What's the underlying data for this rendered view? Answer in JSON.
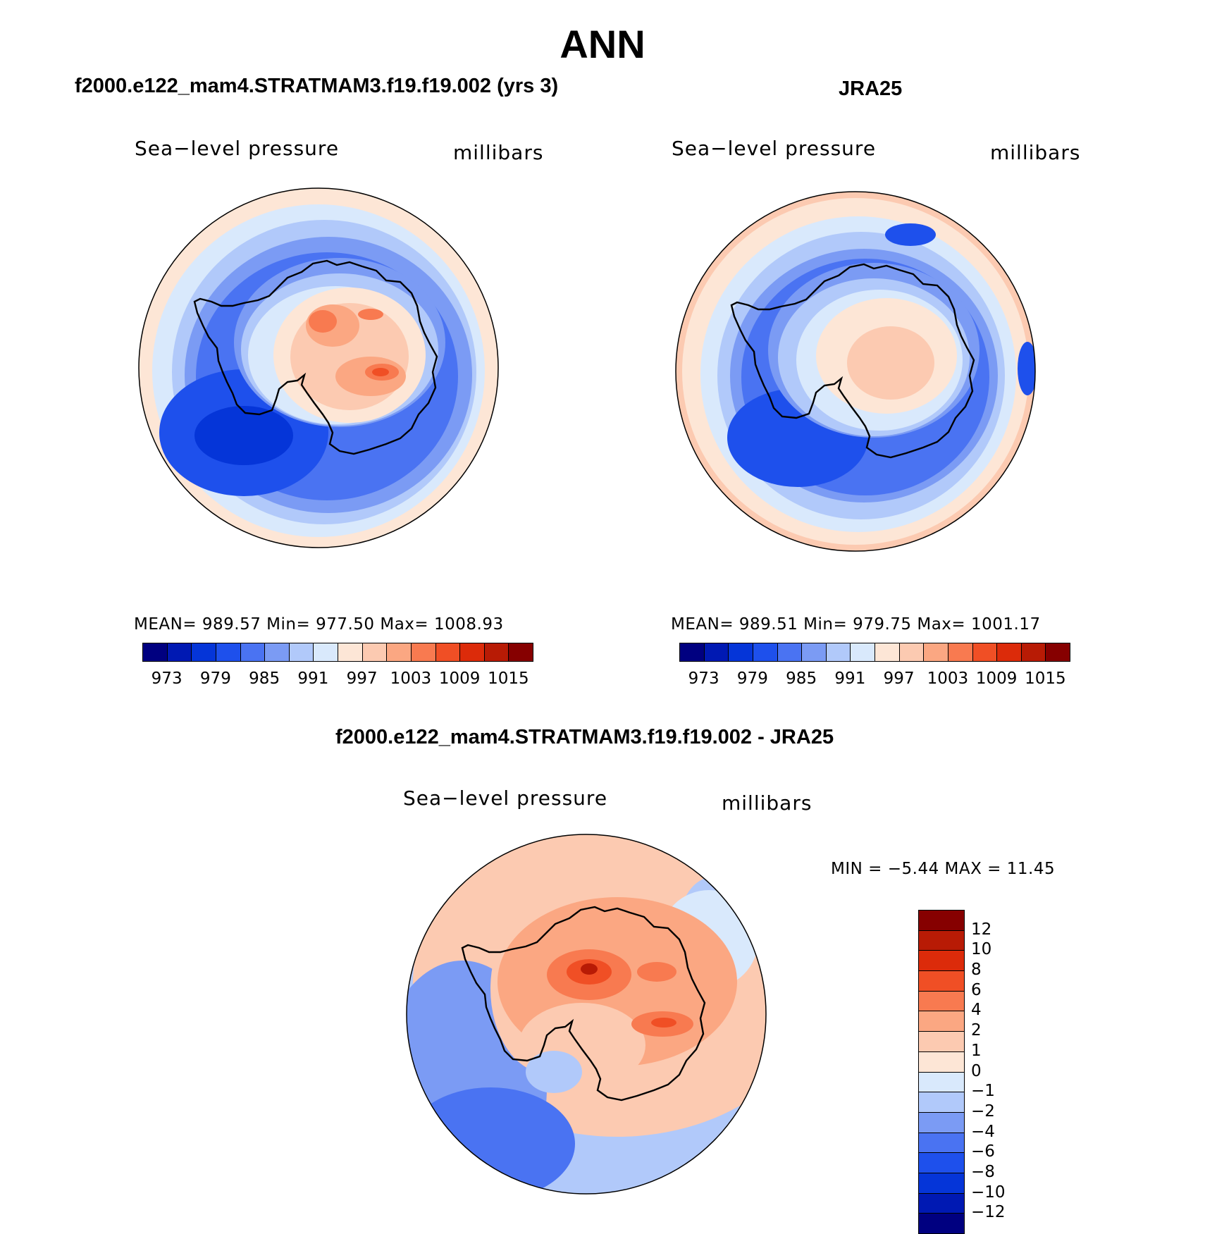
{
  "title": "ANN",
  "colors": {
    "abs_scale": [
      "#000080",
      "#0019b3",
      "#0535d8",
      "#1e50ec",
      "#4a73f2",
      "#7b9bf4",
      "#b1c9fa",
      "#d9e9fc",
      "#fde6d6",
      "#fccab1",
      "#fba782",
      "#f87a50",
      "#f04f25",
      "#dc2b0a",
      "#b81b05",
      "#860000"
    ],
    "diff_scale": [
      "#000080",
      "#0019b3",
      "#0535d8",
      "#1e50ec",
      "#4a73f2",
      "#7b9bf4",
      "#b1c9fa",
      "#d9e9fc",
      "#fde6d6",
      "#fccab1",
      "#fba782",
      "#f87a50",
      "#f04f25",
      "#dc2b0a",
      "#b81b05",
      "#860000"
    ]
  },
  "panels": {
    "model": {
      "subtitle": "f2000.e122_mam4.STRATMAM3.f19.f19.002 (yrs 3)",
      "variable": "Sea−level pressure",
      "units": "millibars",
      "stats": "MEAN=  989.57   Min=  977.50   Max=  1008.93",
      "ticks": [
        "973",
        "979",
        "985",
        "991",
        "997",
        "1003",
        "1009",
        "1015"
      ]
    },
    "obs": {
      "subtitle": "JRA25",
      "variable": "Sea−level pressure",
      "units": "millibars",
      "stats": "MEAN=  989.51   Min=  979.75   Max=  1001.17",
      "ticks": [
        "973",
        "979",
        "985",
        "991",
        "997",
        "1003",
        "1009",
        "1015"
      ]
    },
    "diff": {
      "subtitle": "f2000.e122_mam4.STRATMAM3.f19.f19.002 - JRA25",
      "variable": "Sea−level pressure",
      "units": "millibars",
      "stats": "MIN =   −5.44  MAX =   11.45",
      "ticks": [
        "12",
        "10",
        "8",
        "6",
        "4",
        "2",
        "1",
        "0",
        "−1",
        "−2",
        "−4",
        "−6",
        "−8",
        "−10",
        "−12"
      ]
    }
  }
}
